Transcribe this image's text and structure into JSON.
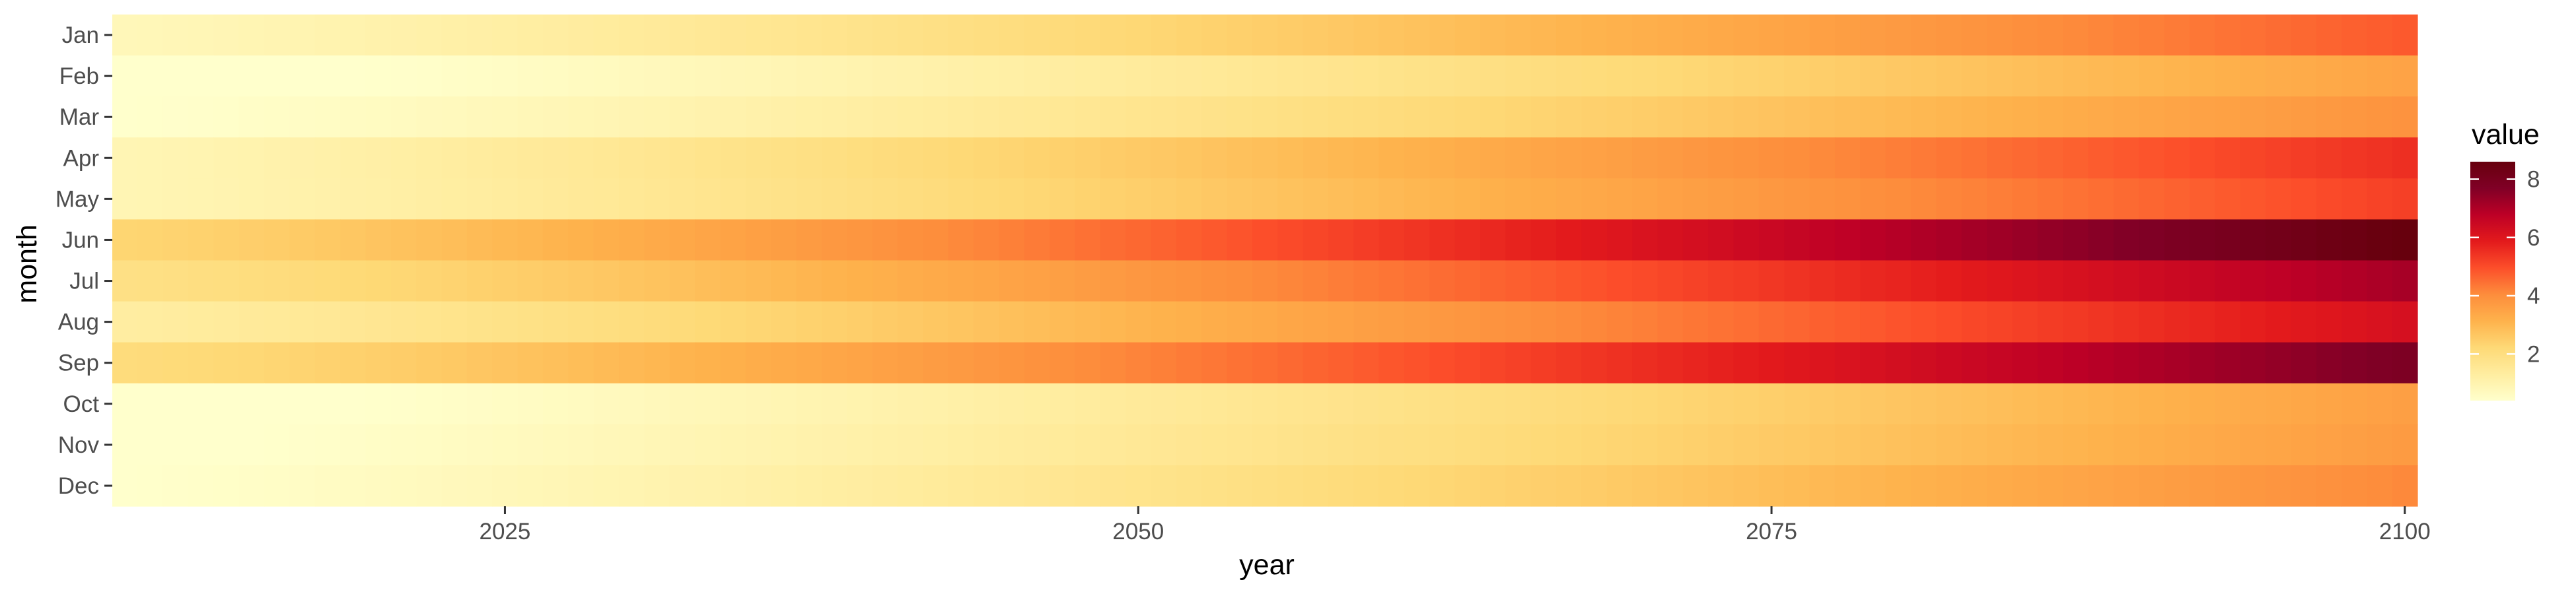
{
  "chart_data": {
    "type": "heatmap",
    "title": "",
    "xlabel": "year",
    "ylabel": "month",
    "x_range": [
      2010,
      2100
    ],
    "x_ticks": [
      2025,
      2050,
      2075,
      2100
    ],
    "months": [
      "Jan",
      "Feb",
      "Mar",
      "Apr",
      "May",
      "Jun",
      "Jul",
      "Aug",
      "Sep",
      "Oct",
      "Nov",
      "Dec"
    ],
    "month_profile": {
      "note_units": "value",
      "start": [
        0.8,
        0.2,
        0.4,
        0.9,
        0.9,
        2.3,
        1.9,
        1.3,
        2.1,
        0.2,
        0.3,
        0.4
      ],
      "end": [
        4.8,
        3.5,
        3.9,
        5.5,
        5.2,
        8.6,
        7.1,
        6.2,
        7.8,
        3.6,
        3.7,
        4.1
      ]
    },
    "legend": {
      "title": "value",
      "ticks": [
        2,
        4,
        6,
        8
      ],
      "range": [
        0.4,
        8.6
      ],
      "palette": "YlOrRd",
      "colors": [
        "#ffffcc",
        "#ffeda0",
        "#fed976",
        "#feb24c",
        "#fd8d3c",
        "#fc4e2a",
        "#e31a1c",
        "#bd0026",
        "#800026",
        "#67000d"
      ]
    },
    "grid": false,
    "legend_position": "right"
  }
}
